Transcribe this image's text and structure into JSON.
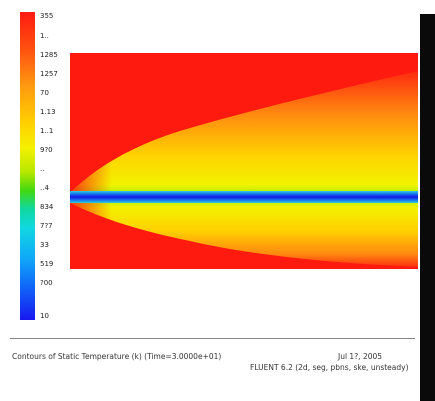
{
  "colorbar": {
    "ticks": [
      "355",
      "1..",
      "1285",
      "1257",
      "70",
      "1.13",
      "1..1",
      "9?0",
      "..",
      "..4",
      "834",
      "7?7",
      "33",
      "519",
      "?00",
      "10"
    ]
  },
  "caption": {
    "line1_left": "Contours of Static Temperature (k)  (Time=3.0000e+01)",
    "line1_right": "Jul 1?, 2005",
    "line2_right": "FLUENT 6.2 (2d, seg, pbns, ske, unsteady)"
  },
  "colors": {
    "hot": "#ff1a10",
    "warm": "#ff9a10",
    "mid": "#f4f000",
    "green": "#40d810",
    "cold": "#1818f0"
  }
}
